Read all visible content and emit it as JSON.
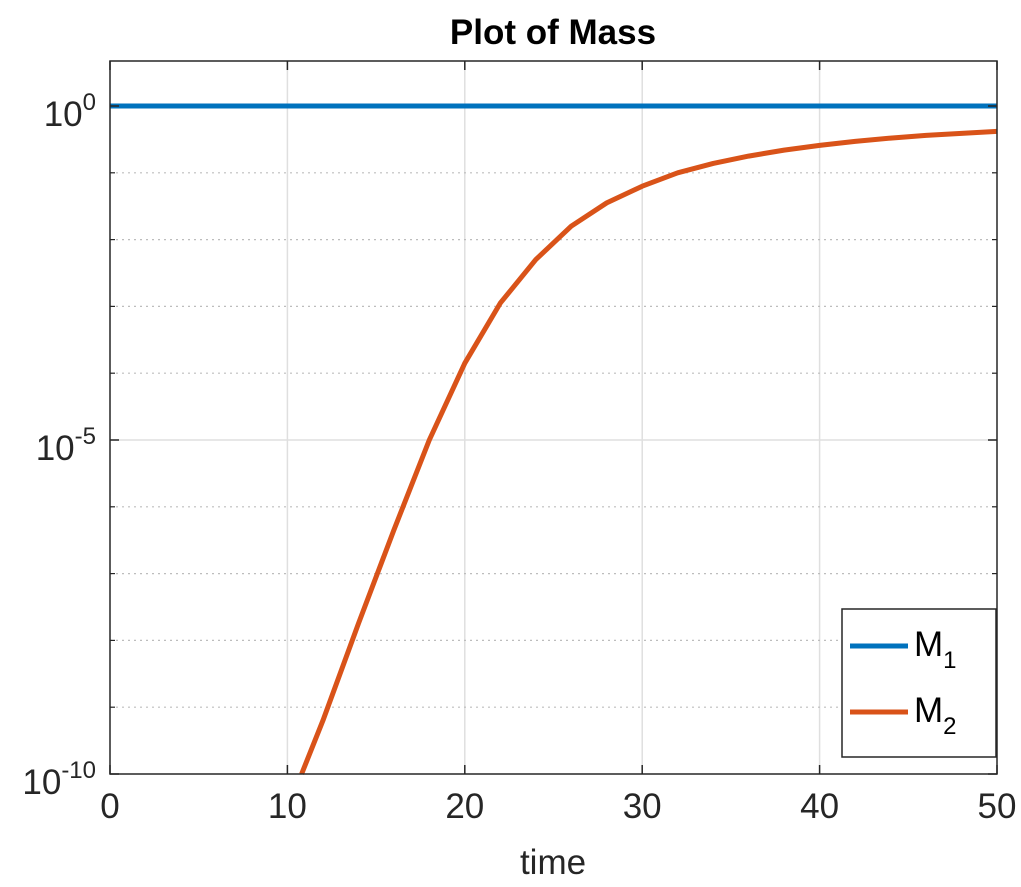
{
  "chart_data": {
    "type": "line",
    "title": "Plot of Mass",
    "xlabel": "time",
    "ylabel": "",
    "xlim": [
      0,
      50
    ],
    "ylim_log10": [
      -10,
      1
    ],
    "yscale": "log",
    "x_ticks": [
      0,
      10,
      20,
      30,
      40,
      50
    ],
    "x_tick_labels": [
      "0",
      "10",
      "20",
      "30",
      "40",
      "50"
    ],
    "y_ticks": [
      {
        "base": "10",
        "exp": "0",
        "log10": 0
      },
      {
        "base": "10",
        "exp": "-5",
        "log10": -5
      },
      {
        "base": "10",
        "exp": "-10",
        "log10": -10
      }
    ],
    "y_minor_grid_log10": [
      -9,
      -8,
      -7,
      -6,
      -4,
      -3,
      -2,
      -1
    ],
    "grid": true,
    "legend_position": "bottom-right",
    "series": [
      {
        "name": "M",
        "subscript": "1",
        "color": "#0072BD",
        "x": [
          0,
          10,
          20,
          30,
          40,
          50
        ],
        "y_log10": [
          0,
          0,
          0,
          0,
          0,
          0
        ]
      },
      {
        "name": "M",
        "subscript": "2",
        "color": "#D95319",
        "x": [
          10.8,
          12,
          14,
          16,
          18,
          20,
          22,
          24,
          26,
          28,
          30,
          32,
          34,
          36,
          38,
          40,
          42,
          44,
          46,
          48,
          50
        ],
        "y_log10": [
          -10,
          -9.2,
          -7.75,
          -6.35,
          -5.0,
          -3.85,
          -2.95,
          -2.3,
          -1.8,
          -1.45,
          -1.2,
          -1.0,
          -0.86,
          -0.75,
          -0.66,
          -0.59,
          -0.53,
          -0.48,
          -0.44,
          -0.41,
          -0.38
        ]
      }
    ]
  }
}
